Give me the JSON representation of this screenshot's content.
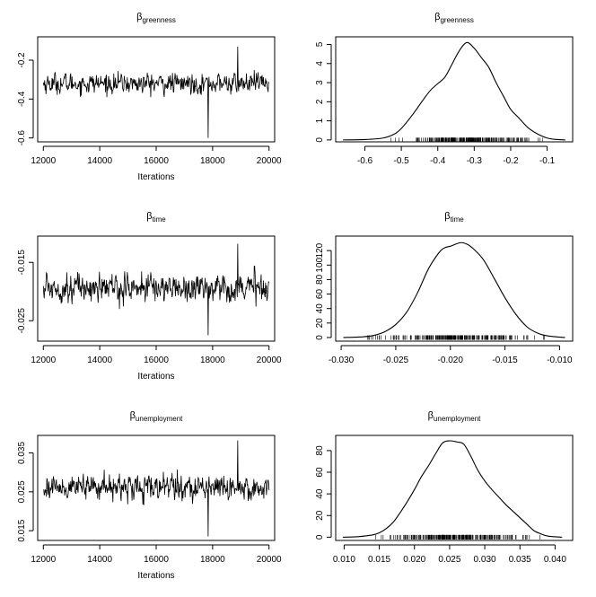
{
  "chart_data": [
    {
      "id": "trace-greenness",
      "type": "line",
      "title": "β",
      "title_sub": "greenness",
      "xlabel": "Iterations",
      "ylabel": "",
      "xlim": [
        11800,
        20200
      ],
      "ylim": [
        -0.62,
        -0.08
      ],
      "xticks": [
        12000,
        14000,
        16000,
        18000,
        20000
      ],
      "xtick_labels": [
        "12000",
        "14000",
        "16000",
        "18000",
        "20000"
      ],
      "yticks": [
        -0.6,
        -0.4,
        -0.2
      ],
      "ytick_labels": [
        "-0.6",
        "-0.4",
        "-0.2"
      ],
      "series": [
        {
          "x": [
            12000,
            12400,
            12800,
            13200,
            13600,
            14000,
            14400,
            14800,
            15200,
            15600,
            16000,
            16400,
            16800,
            17200,
            17600,
            17800,
            18000,
            18400,
            18800,
            19200,
            19600,
            20000
          ],
          "y": [
            -0.32,
            -0.3,
            -0.34,
            -0.31,
            -0.33,
            -0.32,
            -0.35,
            -0.3,
            -0.32,
            -0.31,
            -0.33,
            -0.3,
            -0.32,
            -0.34,
            -0.31,
            -0.58,
            -0.32,
            -0.3,
            -0.33,
            -0.31,
            -0.3,
            -0.34
          ],
          "center": -0.32,
          "spread": 0.09,
          "extreme_low": -0.6,
          "extreme_high": -0.13
        }
      ]
    },
    {
      "id": "density-greenness",
      "type": "area",
      "title": "β",
      "title_sub": "greenness",
      "xlabel": "",
      "ylabel": "",
      "xlim": [
        -0.68,
        -0.03
      ],
      "ylim": [
        -0.1,
        5.4
      ],
      "xticks": [
        -0.6,
        -0.5,
        -0.4,
        -0.3,
        -0.2,
        -0.1
      ],
      "xtick_labels": [
        "-0.6",
        "-0.5",
        "-0.4",
        "-0.3",
        "-0.2",
        "-0.1"
      ],
      "yticks": [
        0,
        1,
        2,
        3,
        4,
        5
      ],
      "ytick_labels": [
        "0",
        "1",
        "2",
        "3",
        "4",
        "5"
      ],
      "series": [
        {
          "x": [
            -0.66,
            -0.6,
            -0.55,
            -0.52,
            -0.5,
            -0.47,
            -0.44,
            -0.42,
            -0.4,
            -0.38,
            -0.36,
            -0.34,
            -0.32,
            -0.3,
            -0.28,
            -0.26,
            -0.24,
            -0.22,
            -0.2,
            -0.18,
            -0.15,
            -0.12,
            -0.1,
            -0.08,
            -0.05
          ],
          "y": [
            0.0,
            0.02,
            0.1,
            0.3,
            0.6,
            1.3,
            2.1,
            2.6,
            2.95,
            3.3,
            4.0,
            4.7,
            5.1,
            4.8,
            4.3,
            3.8,
            3.0,
            2.3,
            1.6,
            1.2,
            0.6,
            0.25,
            0.1,
            0.03,
            0.0
          ]
        }
      ],
      "rug_range": [
        -0.53,
        -0.1
      ]
    },
    {
      "id": "trace-time",
      "type": "line",
      "title": "β",
      "title_sub": "time",
      "xlabel": "Iterations",
      "ylabel": "",
      "xlim": [
        11800,
        20200
      ],
      "ylim": [
        -0.0285,
        -0.0105
      ],
      "xticks": [
        12000,
        14000,
        16000,
        18000,
        20000
      ],
      "xtick_labels": [
        "12000",
        "14000",
        "16000",
        "18000",
        "20000"
      ],
      "yticks": [
        -0.025,
        -0.015
      ],
      "ytick_labels": [
        "-0.025",
        "-0.015"
      ],
      "series": [
        {
          "x": [
            12000,
            12400,
            12800,
            13200,
            13600,
            14000,
            14400,
            14800,
            15200,
            15600,
            16000,
            16400,
            16800,
            17200,
            17600,
            18000,
            18400,
            18800,
            19200,
            19600,
            20000
          ],
          "y": [
            -0.019,
            -0.02,
            -0.018,
            -0.021,
            -0.019,
            -0.02,
            -0.017,
            -0.019,
            -0.021,
            -0.018,
            -0.02,
            -0.019,
            -0.017,
            -0.02,
            -0.019,
            -0.021,
            -0.018,
            -0.02,
            -0.019,
            -0.017,
            -0.02
          ],
          "center": -0.0193,
          "spread": 0.0042,
          "extreme_low": -0.0275,
          "extreme_high": -0.0118
        }
      ]
    },
    {
      "id": "density-time",
      "type": "area",
      "title": "β",
      "title_sub": "time",
      "xlabel": "",
      "ylabel": "",
      "xlim": [
        -0.0305,
        -0.0088
      ],
      "ylim": [
        -5,
        140
      ],
      "xticks": [
        -0.03,
        -0.025,
        -0.02,
        -0.015,
        -0.01
      ],
      "xtick_labels": [
        "-0.030",
        "-0.025",
        "-0.020",
        "-0.015",
        "-0.010"
      ],
      "yticks": [
        0,
        20,
        40,
        60,
        80,
        100,
        120
      ],
      "ytick_labels": [
        "0",
        "20",
        "40",
        "60",
        "80",
        "100",
        "120"
      ],
      "series": [
        {
          "x": [
            -0.0298,
            -0.028,
            -0.027,
            -0.026,
            -0.025,
            -0.024,
            -0.023,
            -0.022,
            -0.021,
            -0.0205,
            -0.02,
            -0.0195,
            -0.019,
            -0.0185,
            -0.018,
            -0.017,
            -0.016,
            -0.015,
            -0.014,
            -0.013,
            -0.012,
            -0.011,
            -0.0095
          ],
          "y": [
            0,
            1,
            3,
            8,
            18,
            35,
            62,
            95,
            118,
            124,
            126,
            129,
            131,
            129,
            124,
            108,
            82,
            55,
            32,
            15,
            6,
            2,
            0
          ]
        }
      ],
      "rug_range": [
        -0.0278,
        -0.0112
      ]
    },
    {
      "id": "trace-unemployment",
      "type": "line",
      "title": "β",
      "title_sub": "unemployment",
      "xlabel": "Iterations",
      "ylabel": "",
      "xlim": [
        11800,
        20200
      ],
      "ylim": [
        0.0125,
        0.0395
      ],
      "xticks": [
        12000,
        14000,
        16000,
        18000,
        20000
      ],
      "xtick_labels": [
        "12000",
        "14000",
        "16000",
        "18000",
        "20000"
      ],
      "yticks": [
        0.015,
        0.025,
        0.035
      ],
      "ytick_labels": [
        "0.015",
        "0.025",
        "0.035"
      ],
      "series": [
        {
          "x": [
            12000,
            12400,
            12800,
            13200,
            13600,
            14000,
            14400,
            14800,
            15200,
            15600,
            16000,
            16400,
            16800,
            17200,
            17600,
            18000,
            18400,
            18800,
            19200,
            19600,
            20000
          ],
          "y": [
            0.026,
            0.027,
            0.025,
            0.026,
            0.028,
            0.027,
            0.025,
            0.026,
            0.027,
            0.024,
            0.026,
            0.027,
            0.025,
            0.026,
            0.027,
            0.025,
            0.026,
            0.027,
            0.026,
            0.025,
            0.026
          ],
          "center": 0.0262,
          "spread": 0.0055,
          "extreme_low": 0.0135,
          "extreme_high": 0.0382
        }
      ]
    },
    {
      "id": "density-unemployment",
      "type": "area",
      "title": "β",
      "title_sub": "unemployment",
      "xlabel": "",
      "ylabel": "",
      "xlim": [
        0.0088,
        0.0425
      ],
      "ylim": [
        -3,
        94
      ],
      "xticks": [
        0.01,
        0.015,
        0.02,
        0.025,
        0.03,
        0.035,
        0.04
      ],
      "xtick_labels": [
        "0.010",
        "0.015",
        "0.020",
        "0.025",
        "0.030",
        "0.035",
        "0.040"
      ],
      "yticks": [
        0,
        20,
        40,
        60,
        80
      ],
      "ytick_labels": [
        "0",
        "20",
        "40",
        "60",
        "80"
      ],
      "series": [
        {
          "x": [
            0.0098,
            0.012,
            0.014,
            0.015,
            0.016,
            0.017,
            0.018,
            0.019,
            0.02,
            0.021,
            0.022,
            0.023,
            0.024,
            0.025,
            0.026,
            0.027,
            0.028,
            0.029,
            0.03,
            0.031,
            0.032,
            0.033,
            0.034,
            0.035,
            0.036,
            0.037,
            0.038,
            0.039,
            0.041
          ],
          "y": [
            0,
            0.5,
            2,
            4,
            8,
            14,
            23,
            33,
            44,
            56,
            66,
            77,
            87,
            89,
            88,
            86,
            75,
            62,
            52,
            44,
            37,
            30,
            24,
            18,
            12,
            6,
            3,
            1,
            0
          ]
        }
      ],
      "rug_range": [
        0.014,
        0.038
      ]
    }
  ]
}
